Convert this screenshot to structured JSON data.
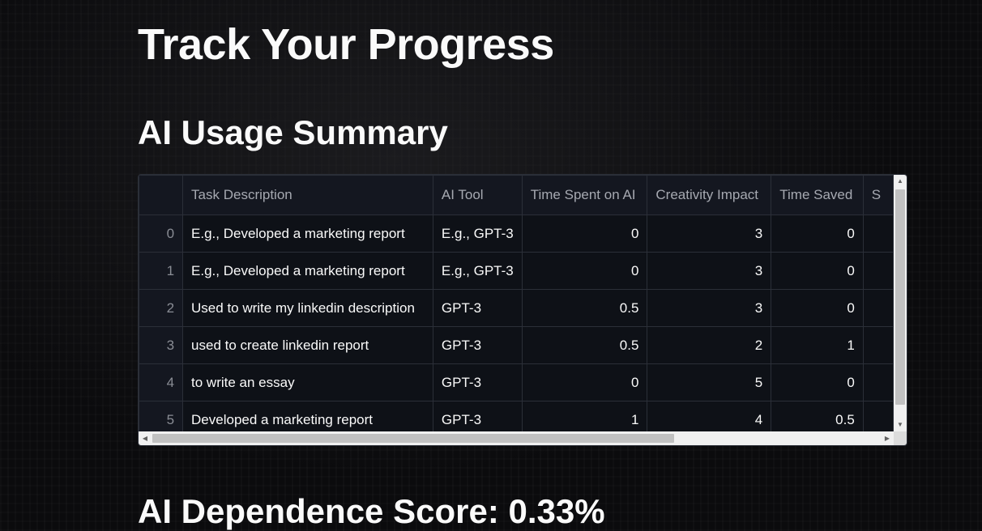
{
  "page": {
    "title": "Track Your Progress",
    "summary_heading": "AI Usage Summary",
    "score_heading": "AI Dependence Score: 0.33%"
  },
  "table": {
    "columns": [
      "",
      "Task Description",
      "AI Tool",
      "Time Spent on AI",
      "Creativity Impact",
      "Time Saved",
      "S"
    ],
    "rows": [
      {
        "index": "0",
        "task": "E.g., Developed a marketing report",
        "tool": "E.g., GPT-3",
        "time_spent": "0",
        "creativity": "3",
        "time_saved": "0"
      },
      {
        "index": "1",
        "task": "E.g., Developed a marketing report",
        "tool": "E.g., GPT-3",
        "time_spent": "0",
        "creativity": "3",
        "time_saved": "0"
      },
      {
        "index": "2",
        "task": "Used to write my linkedin description",
        "tool": " GPT-3",
        "time_spent": "0.5",
        "creativity": "3",
        "time_saved": "0"
      },
      {
        "index": "3",
        "task": "used to create linkedin report",
        "tool": "GPT-3",
        "time_spent": "0.5",
        "creativity": "2",
        "time_saved": "1"
      },
      {
        "index": "4",
        "task": "to write an essay",
        "tool": "GPT-3",
        "time_spent": "0",
        "creativity": "5",
        "time_saved": "0"
      },
      {
        "index": "5",
        "task": "Developed a marketing report",
        "tool": " GPT-3",
        "time_spent": "1",
        "creativity": "4",
        "time_saved": "0.5"
      }
    ]
  },
  "icons": {
    "scroll_up": "arrow-up-icon",
    "scroll_down": "arrow-down-icon",
    "scroll_left": "arrow-left-icon",
    "scroll_right": "arrow-right-icon"
  }
}
